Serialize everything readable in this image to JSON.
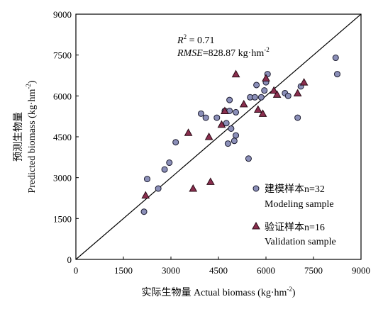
{
  "chart_data": {
    "type": "scatter",
    "xlabel": "实际生物量 Actual biomass (kg·hm",
    "xlabel_sup": "-2",
    "xlabel_end": ")",
    "ylabel_cn": "预测生物量",
    "ylabel_en": "Predicted biomass (kg·hm",
    "ylabel_sup": "-2",
    "ylabel_end": ")",
    "xlim": [
      0,
      9000
    ],
    "ylim": [
      0,
      9000
    ],
    "xticks": [
      0,
      1500,
      3000,
      4500,
      6000,
      7500,
      9000
    ],
    "yticks": [
      0,
      1500,
      3000,
      4500,
      6000,
      7500,
      9000
    ],
    "xtick_labels": [
      "0",
      "1500",
      "3000",
      "4500",
      "6000",
      "7500",
      "9000"
    ],
    "ytick_labels": [
      "0",
      "1500",
      "3000",
      "4500",
      "6000",
      "7500",
      "9000"
    ],
    "reference_line": {
      "from": [
        0,
        0
      ],
      "to": [
        9000,
        9000
      ]
    },
    "stats": {
      "r2_label": "R",
      "r2_sup": "2",
      "r2_value": " = 0.71",
      "rmse_label": "RMSE",
      "rmse_value": "=828.87 kg·hm",
      "rmse_sup": "-2"
    },
    "series": [
      {
        "name_cn": "建模样本n=32",
        "name_en": "Modeling sample",
        "marker": "circle",
        "color": "#8b8fb8",
        "stroke": "#1a1a2e",
        "points": [
          [
            2150,
            1750
          ],
          [
            2250,
            2950
          ],
          [
            2600,
            2600
          ],
          [
            2800,
            3300
          ],
          [
            2950,
            3550
          ],
          [
            3150,
            4300
          ],
          [
            3950,
            5350
          ],
          [
            4100,
            5200
          ],
          [
            4450,
            5200
          ],
          [
            4700,
            5450
          ],
          [
            4750,
            5000
          ],
          [
            4800,
            4250
          ],
          [
            4850,
            5450
          ],
          [
            4850,
            5850
          ],
          [
            4900,
            4800
          ],
          [
            5000,
            4350
          ],
          [
            5050,
            4550
          ],
          [
            5050,
            5400
          ],
          [
            5450,
            3700
          ],
          [
            5500,
            5950
          ],
          [
            5650,
            5950
          ],
          [
            5700,
            6400
          ],
          [
            5850,
            5950
          ],
          [
            5950,
            6200
          ],
          [
            6050,
            6800
          ],
          [
            6000,
            6500
          ],
          [
            6600,
            6100
          ],
          [
            6700,
            6000
          ],
          [
            7000,
            5200
          ],
          [
            7100,
            6350
          ],
          [
            8200,
            7400
          ],
          [
            8250,
            6800
          ]
        ]
      },
      {
        "name_cn": "验证样本n=16",
        "name_en": "Validation sample",
        "marker": "triangle",
        "color": "#8a2e4e",
        "stroke": "#2a0a16",
        "points": [
          [
            2200,
            2350
          ],
          [
            3550,
            4650
          ],
          [
            3700,
            2600
          ],
          [
            4200,
            4500
          ],
          [
            4250,
            2850
          ],
          [
            4600,
            4950
          ],
          [
            4700,
            5450
          ],
          [
            5050,
            6800
          ],
          [
            5300,
            5700
          ],
          [
            5750,
            5500
          ],
          [
            5900,
            5350
          ],
          [
            6000,
            6650
          ],
          [
            6250,
            6200
          ],
          [
            6350,
            6050
          ],
          [
            7000,
            6100
          ],
          [
            7200,
            6500
          ]
        ]
      }
    ]
  }
}
